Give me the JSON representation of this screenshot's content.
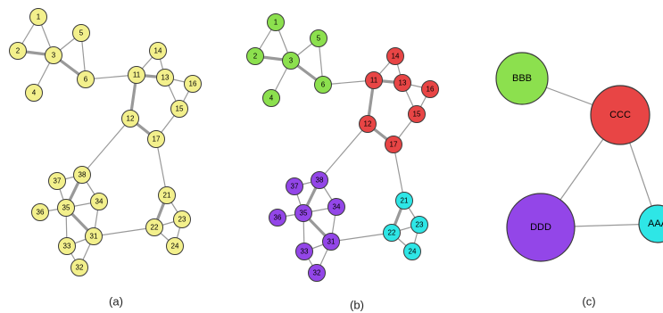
{
  "colors": {
    "yellow": "#f3f08c",
    "green": "#8ce04e",
    "red": "#e84545",
    "purple": "#9346e8",
    "cyan": "#2ee6e6"
  },
  "graph": {
    "nodes": [
      "1",
      "2",
      "3",
      "4",
      "5",
      "6",
      "11",
      "12",
      "13",
      "14",
      "15",
      "16",
      "17",
      "21",
      "22",
      "23",
      "24",
      "31",
      "32",
      "33",
      "34",
      "35",
      "36",
      "37",
      "38"
    ],
    "edges": [
      [
        "1",
        "2",
        false
      ],
      [
        "1",
        "3",
        false
      ],
      [
        "2",
        "3",
        true
      ],
      [
        "3",
        "4",
        false
      ],
      [
        "3",
        "5",
        false
      ],
      [
        "3",
        "6",
        true
      ],
      [
        "5",
        "6",
        false
      ],
      [
        "6",
        "11",
        false
      ],
      [
        "11",
        "12",
        true
      ],
      [
        "11",
        "13",
        true
      ],
      [
        "11",
        "14",
        false
      ],
      [
        "13",
        "14",
        false
      ],
      [
        "13",
        "15",
        false
      ],
      [
        "13",
        "16",
        false
      ],
      [
        "15",
        "16",
        false
      ],
      [
        "15",
        "17",
        false
      ],
      [
        "12",
        "17",
        true
      ],
      [
        "12",
        "38",
        false
      ],
      [
        "17",
        "21",
        false
      ],
      [
        "21",
        "22",
        true
      ],
      [
        "21",
        "23",
        false
      ],
      [
        "22",
        "23",
        false
      ],
      [
        "22",
        "24",
        false
      ],
      [
        "23",
        "24",
        false
      ],
      [
        "22",
        "31",
        false
      ],
      [
        "38",
        "37",
        false
      ],
      [
        "38",
        "35",
        true
      ],
      [
        "38",
        "34",
        false
      ],
      [
        "37",
        "35",
        false
      ],
      [
        "36",
        "35",
        false
      ],
      [
        "35",
        "34",
        false
      ],
      [
        "35",
        "31",
        true
      ],
      [
        "35",
        "33",
        false
      ],
      [
        "34",
        "31",
        false
      ],
      [
        "33",
        "31",
        false
      ],
      [
        "33",
        "32",
        false
      ],
      [
        "31",
        "32",
        false
      ]
    ]
  },
  "community_assignment": {
    "1": "green",
    "2": "green",
    "3": "green",
    "4": "green",
    "5": "green",
    "6": "green",
    "11": "red",
    "12": "red",
    "13": "red",
    "14": "red",
    "15": "red",
    "16": "red",
    "17": "red",
    "21": "cyan",
    "22": "cyan",
    "23": "cyan",
    "24": "cyan",
    "31": "purple",
    "32": "purple",
    "33": "purple",
    "34": "purple",
    "35": "purple",
    "36": "purple",
    "37": "purple",
    "38": "purple"
  },
  "communities": {
    "nodes": [
      {
        "label": "BBB",
        "color": "green"
      },
      {
        "label": "CCC",
        "color": "red"
      },
      {
        "label": "DDD",
        "color": "purple"
      },
      {
        "label": "AAA",
        "color": "cyan"
      }
    ],
    "edges": [
      [
        "BBB",
        "CCC"
      ],
      [
        "CCC",
        "DDD"
      ],
      [
        "CCC",
        "AAA"
      ],
      [
        "DDD",
        "AAA"
      ]
    ]
  },
  "captions": {
    "a": "(a)",
    "b": "(b)",
    "c": "(c)"
  }
}
